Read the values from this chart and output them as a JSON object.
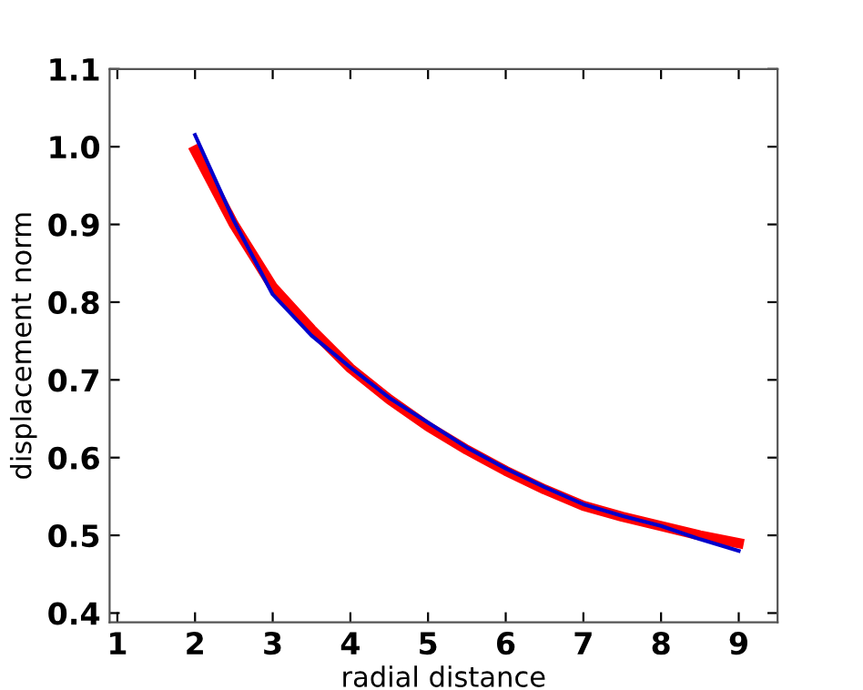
{
  "chart_data": {
    "type": "line",
    "xlabel": "radial distance",
    "ylabel": "displacement norm",
    "xlim": [
      0.9,
      9.5
    ],
    "xticks": [
      1,
      2,
      3,
      4,
      5,
      6,
      7,
      8,
      9
    ],
    "ylim": [
      0.388,
      1.1
    ],
    "yticks": [
      0.4,
      0.5,
      0.6,
      0.7,
      0.8,
      0.9,
      {
        "value": 1,
        "label": "1.0"
      },
      1.1
    ],
    "grid": false,
    "legend": false,
    "marker": "none",
    "line_style": "solid",
    "series": [
      {
        "color": "#ff0000",
        "x": [
          2,
          2.5,
          3,
          3.5,
          4,
          4.5,
          5,
          5.5,
          6,
          6.5,
          7,
          7.5,
          8,
          8.5,
          9
        ],
        "values": [
          0.995,
          0.9,
          0.82,
          0.765,
          0.715,
          0.675,
          0.64,
          0.61,
          0.583,
          0.559,
          0.538,
          0.524,
          0.512,
          0.5,
          0.49
        ]
      },
      {
        "color": "#0000cc",
        "x": [
          2,
          2.5,
          3,
          3.5,
          4,
          4.5,
          5,
          5.5,
          6,
          6.5,
          7,
          7.5,
          8,
          8.5,
          9
        ],
        "values": [
          1.015,
          0.905,
          0.81,
          0.757,
          0.716,
          0.677,
          0.645,
          0.613,
          0.586,
          0.562,
          0.54,
          0.525,
          0.512,
          0.495,
          0.48
        ]
      }
    ]
  }
}
